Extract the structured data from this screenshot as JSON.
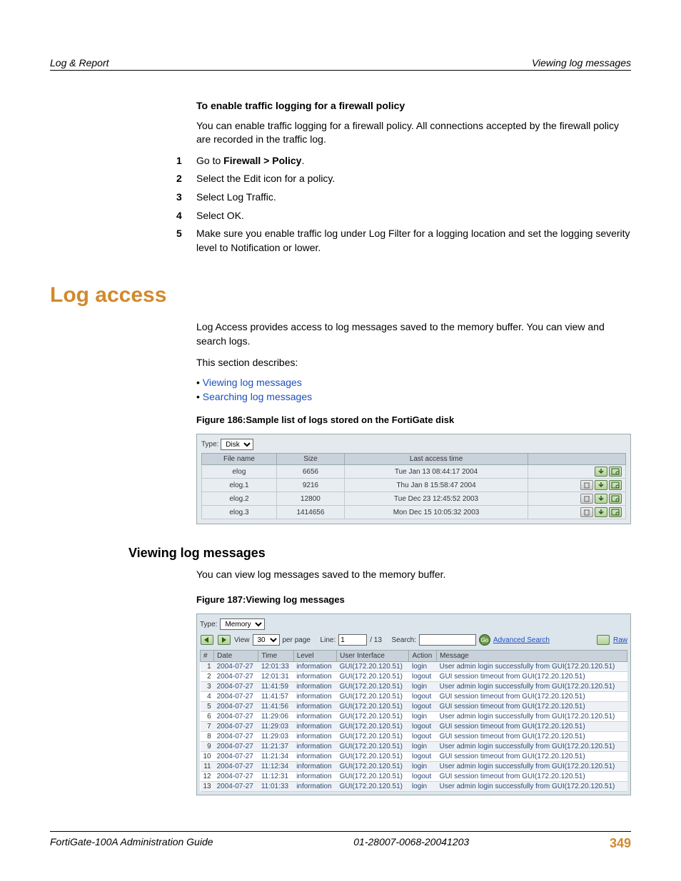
{
  "header": {
    "left": "Log & Report",
    "right": "Viewing log messages"
  },
  "sec": {
    "enable_title": "To enable traffic logging for a firewall policy",
    "enable_desc": "You can enable traffic logging for a firewall policy. All connections accepted by the firewall policy are recorded in the traffic log.",
    "steps": [
      {
        "n": "1",
        "pre": "Go to ",
        "b": "Firewall > Policy",
        "post": "."
      },
      {
        "n": "2",
        "pre": "Select the Edit icon for a policy.",
        "b": "",
        "post": ""
      },
      {
        "n": "3",
        "pre": "Select Log Traffic.",
        "b": "",
        "post": ""
      },
      {
        "n": "4",
        "pre": "Select OK.",
        "b": "",
        "post": ""
      },
      {
        "n": "5",
        "pre": "Make sure you enable traffic log under Log Filter for a logging location and set the logging severity level to Notification or lower.",
        "b": "",
        "post": ""
      }
    ],
    "log_access_title": "Log access",
    "log_access_p1": "Log Access provides access to log messages saved to the memory buffer. You can view and search logs.",
    "log_access_p2": "This section describes:",
    "link_viewing": "Viewing log messages",
    "link_searching": "Searching log messages",
    "fig186_caption": "Figure 186:Sample list of logs stored on the FortiGate disk",
    "fig187_caption": "Figure 187:Viewing log messages",
    "viewing_title": "Viewing log messages",
    "viewing_desc": "You can view log messages saved to the memory buffer."
  },
  "fig186": {
    "type_label": "Type:",
    "type_value": "Disk",
    "cols": [
      "File name",
      "Size",
      "Last access time",
      ""
    ],
    "rows": [
      {
        "name": "elog",
        "size": "6656",
        "time": "Tue Jan 13 08:44:17 2004",
        "icons": [
          "download",
          "view"
        ]
      },
      {
        "name": "elog.1",
        "size": "9216",
        "time": "Thu Jan 8 15:58:47 2004",
        "icons": [
          "trash",
          "download",
          "view"
        ]
      },
      {
        "name": "elog.2",
        "size": "12800",
        "time": "Tue Dec 23 12:45:52 2003",
        "icons": [
          "trash",
          "download",
          "view"
        ]
      },
      {
        "name": "elog.3",
        "size": "1414656",
        "time": "Mon Dec 15 10:05:32 2003",
        "icons": [
          "trash",
          "download",
          "view"
        ]
      }
    ]
  },
  "fig187": {
    "type_label": "Type:",
    "type_value": "Memory",
    "view_label": "View",
    "view_value": "30",
    "per_page": "per page",
    "line_label": "Line:",
    "line_value": "1",
    "line_total": "/ 13",
    "search_label": "Search:",
    "go": "Go",
    "adv_link": "Advanced Search",
    "raw_link": "Raw",
    "cols": [
      "#",
      "Date",
      "Time",
      "Level",
      "User Interface",
      "Action",
      "Message"
    ],
    "rows": [
      [
        "1",
        "2004-07-27",
        "12:01:33",
        "information",
        "GUI(172.20.120.51)",
        "login",
        "User admin login successfully from GUI(172.20.120.51)"
      ],
      [
        "2",
        "2004-07-27",
        "12:01:31",
        "information",
        "GUI(172.20.120.51)",
        "logout",
        "GUI session timeout from GUI(172.20.120.51)"
      ],
      [
        "3",
        "2004-07-27",
        "11:41:59",
        "information",
        "GUI(172.20.120.51)",
        "login",
        "User admin login successfully from GUI(172.20.120.51)"
      ],
      [
        "4",
        "2004-07-27",
        "11:41:57",
        "information",
        "GUI(172.20.120.51)",
        "logout",
        "GUI session timeout from GUI(172.20.120.51)"
      ],
      [
        "5",
        "2004-07-27",
        "11:41:56",
        "information",
        "GUI(172.20.120.51)",
        "logout",
        "GUI session timeout from GUI(172.20.120.51)"
      ],
      [
        "6",
        "2004-07-27",
        "11:29:06",
        "information",
        "GUI(172.20.120.51)",
        "login",
        "User admin login successfully from GUI(172.20.120.51)"
      ],
      [
        "7",
        "2004-07-27",
        "11:29:03",
        "information",
        "GUI(172.20.120.51)",
        "logout",
        "GUI session timeout from GUI(172.20.120.51)"
      ],
      [
        "8",
        "2004-07-27",
        "11:29:03",
        "information",
        "GUI(172.20.120.51)",
        "logout",
        "GUI session timeout from GUI(172.20.120.51)"
      ],
      [
        "9",
        "2004-07-27",
        "11:21:37",
        "information",
        "GUI(172.20.120.51)",
        "login",
        "User admin login successfully from GUI(172.20.120.51)"
      ],
      [
        "10",
        "2004-07-27",
        "11:21:34",
        "information",
        "GUI(172.20.120.51)",
        "logout",
        "GUI session timeout from GUI(172.20.120.51)"
      ],
      [
        "11",
        "2004-07-27",
        "11:12:34",
        "information",
        "GUI(172.20.120.51)",
        "login",
        "User admin login successfully from GUI(172.20.120.51)"
      ],
      [
        "12",
        "2004-07-27",
        "11:12:31",
        "information",
        "GUI(172.20.120.51)",
        "logout",
        "GUI session timeout from GUI(172.20.120.51)"
      ],
      [
        "13",
        "2004-07-27",
        "11:01:33",
        "information",
        "GUI(172.20.120.51)",
        "login",
        "User admin login successfully from GUI(172.20.120.51)"
      ]
    ]
  },
  "footer": {
    "left": "FortiGate-100A Administration Guide",
    "center": "01-28007-0068-20041203",
    "page": "349"
  }
}
